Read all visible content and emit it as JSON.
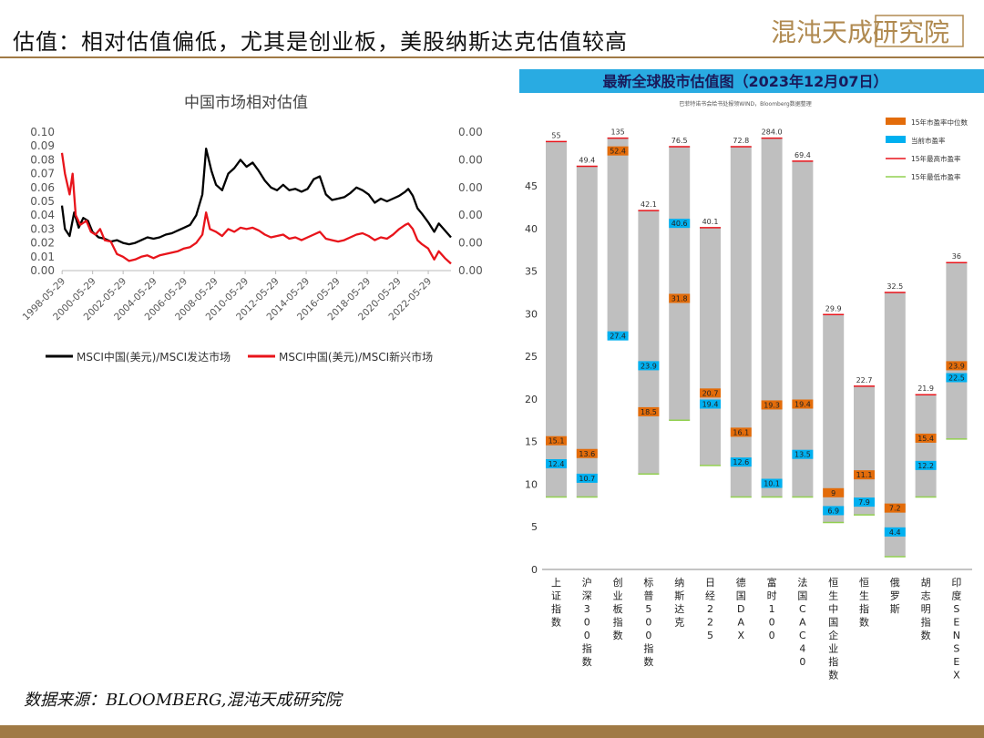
{
  "header": {
    "title": "估值：相对估值偏低，尤其是创业板，美股纳斯达克估值较高",
    "logo_text": "混沌天成研究院"
  },
  "footer": {
    "source": "数据来源：BLOOMBERG,混沌天成研究院"
  },
  "colors": {
    "accent": "#a07a45",
    "black_series": "#000000",
    "red_series": "#e8141b",
    "banner": "#29abe2",
    "median": "#e36c0a",
    "current": "#00b0f0",
    "high": "#e8141b",
    "low": "#92d050",
    "bar": "#bfbfbf"
  },
  "chart_data": [
    {
      "type": "line",
      "title": "中国市场相对估值",
      "x_ticks": [
        "1998-05-29",
        "2000-05-29",
        "2002-05-29",
        "2004-05-29",
        "2006-05-29",
        "2008-05-29",
        "2010-05-29",
        "2012-05-29",
        "2014-05-29",
        "2016-05-29",
        "2018-05-29",
        "2020-05-29",
        "2022-05-29"
      ],
      "y_ticks_left": [
        "0.00",
        "0.01",
        "0.02",
        "0.03",
        "0.04",
        "0.05",
        "0.06",
        "0.07",
        "0.08",
        "0.09",
        "0.10"
      ],
      "y_ticks_right": [
        "0.00",
        "0.00",
        "0.00",
        "0.00",
        "0.00",
        "0.00"
      ],
      "ylim": [
        0,
        0.1
      ],
      "xlim": [
        1998.4,
        2023.9
      ],
      "series": [
        {
          "name": "MSCI中国(美元)/MSCI发达市场",
          "points": [
            [
              1998.4,
              0.047
            ],
            [
              1998.6,
              0.03
            ],
            [
              1998.9,
              0.025
            ],
            [
              1999.2,
              0.042
            ],
            [
              1999.5,
              0.031
            ],
            [
              1999.8,
              0.038
            ],
            [
              2000.1,
              0.036
            ],
            [
              2000.4,
              0.028
            ],
            [
              2000.8,
              0.024
            ],
            [
              2001.2,
              0.023
            ],
            [
              2001.6,
              0.021
            ],
            [
              2002.0,
              0.022
            ],
            [
              2002.4,
              0.02
            ],
            [
              2002.8,
              0.019
            ],
            [
              2003.2,
              0.02
            ],
            [
              2003.6,
              0.022
            ],
            [
              2004.0,
              0.024
            ],
            [
              2004.4,
              0.023
            ],
            [
              2004.8,
              0.024
            ],
            [
              2005.2,
              0.026
            ],
            [
              2005.6,
              0.027
            ],
            [
              2006.0,
              0.029
            ],
            [
              2006.4,
              0.031
            ],
            [
              2006.8,
              0.033
            ],
            [
              2007.2,
              0.04
            ],
            [
              2007.6,
              0.055
            ],
            [
              2007.85,
              0.088
            ],
            [
              2008.2,
              0.072
            ],
            [
              2008.5,
              0.062
            ],
            [
              2008.9,
              0.058
            ],
            [
              2009.3,
              0.07
            ],
            [
              2009.7,
              0.074
            ],
            [
              2010.1,
              0.08
            ],
            [
              2010.5,
              0.075
            ],
            [
              2010.9,
              0.078
            ],
            [
              2011.3,
              0.072
            ],
            [
              2011.7,
              0.065
            ],
            [
              2012.1,
              0.06
            ],
            [
              2012.5,
              0.058
            ],
            [
              2012.9,
              0.062
            ],
            [
              2013.3,
              0.058
            ],
            [
              2013.7,
              0.059
            ],
            [
              2014.1,
              0.057
            ],
            [
              2014.5,
              0.059
            ],
            [
              2014.9,
              0.066
            ],
            [
              2015.3,
              0.068
            ],
            [
              2015.7,
              0.055
            ],
            [
              2016.1,
              0.051
            ],
            [
              2016.5,
              0.052
            ],
            [
              2016.9,
              0.053
            ],
            [
              2017.3,
              0.056
            ],
            [
              2017.7,
              0.06
            ],
            [
              2018.1,
              0.058
            ],
            [
              2018.5,
              0.055
            ],
            [
              2018.9,
              0.049
            ],
            [
              2019.3,
              0.052
            ],
            [
              2019.7,
              0.05
            ],
            [
              2020.1,
              0.052
            ],
            [
              2020.5,
              0.054
            ],
            [
              2020.9,
              0.057
            ],
            [
              2021.1,
              0.059
            ],
            [
              2021.4,
              0.054
            ],
            [
              2021.7,
              0.045
            ],
            [
              2022.0,
              0.041
            ],
            [
              2022.4,
              0.035
            ],
            [
              2022.8,
              0.028
            ],
            [
              2023.1,
              0.034
            ],
            [
              2023.5,
              0.029
            ],
            [
              2023.9,
              0.024
            ]
          ]
        },
        {
          "name": "MSCI中国(美元)/MSCI新兴市场",
          "points": [
            [
              1998.4,
              0.085
            ],
            [
              1998.6,
              0.07
            ],
            [
              1998.9,
              0.055
            ],
            [
              1999.1,
              0.07
            ],
            [
              1999.3,
              0.04
            ],
            [
              1999.6,
              0.033
            ],
            [
              2000.0,
              0.036
            ],
            [
              2000.3,
              0.028
            ],
            [
              2000.6,
              0.026
            ],
            [
              2000.9,
              0.03
            ],
            [
              2001.2,
              0.022
            ],
            [
              2001.6,
              0.021
            ],
            [
              2002.0,
              0.012
            ],
            [
              2002.4,
              0.01
            ],
            [
              2002.8,
              0.007
            ],
            [
              2003.2,
              0.008
            ],
            [
              2003.6,
              0.01
            ],
            [
              2004.0,
              0.011
            ],
            [
              2004.4,
              0.009
            ],
            [
              2004.8,
              0.011
            ],
            [
              2005.2,
              0.012
            ],
            [
              2005.6,
              0.013
            ],
            [
              2006.0,
              0.014
            ],
            [
              2006.4,
              0.016
            ],
            [
              2006.8,
              0.017
            ],
            [
              2007.2,
              0.02
            ],
            [
              2007.6,
              0.026
            ],
            [
              2007.85,
              0.042
            ],
            [
              2008.1,
              0.03
            ],
            [
              2008.5,
              0.028
            ],
            [
              2008.9,
              0.025
            ],
            [
              2009.3,
              0.03
            ],
            [
              2009.7,
              0.028
            ],
            [
              2010.1,
              0.031
            ],
            [
              2010.5,
              0.03
            ],
            [
              2010.9,
              0.031
            ],
            [
              2011.3,
              0.029
            ],
            [
              2011.7,
              0.026
            ],
            [
              2012.1,
              0.024
            ],
            [
              2012.5,
              0.025
            ],
            [
              2012.9,
              0.026
            ],
            [
              2013.3,
              0.023
            ],
            [
              2013.7,
              0.024
            ],
            [
              2014.1,
              0.022
            ],
            [
              2014.5,
              0.024
            ],
            [
              2014.9,
              0.026
            ],
            [
              2015.3,
              0.028
            ],
            [
              2015.7,
              0.023
            ],
            [
              2016.1,
              0.022
            ],
            [
              2016.5,
              0.021
            ],
            [
              2016.9,
              0.022
            ],
            [
              2017.3,
              0.024
            ],
            [
              2017.7,
              0.026
            ],
            [
              2018.1,
              0.027
            ],
            [
              2018.5,
              0.025
            ],
            [
              2018.9,
              0.022
            ],
            [
              2019.3,
              0.024
            ],
            [
              2019.7,
              0.023
            ],
            [
              2020.1,
              0.026
            ],
            [
              2020.5,
              0.03
            ],
            [
              2020.9,
              0.033
            ],
            [
              2021.1,
              0.034
            ],
            [
              2021.4,
              0.03
            ],
            [
              2021.7,
              0.022
            ],
            [
              2022.0,
              0.019
            ],
            [
              2022.4,
              0.016
            ],
            [
              2022.8,
              0.008
            ],
            [
              2023.1,
              0.014
            ],
            [
              2023.5,
              0.009
            ],
            [
              2023.9,
              0.005
            ]
          ]
        }
      ]
    },
    {
      "type": "bar",
      "title": "最新全球股市估值图（2023年12月07日）",
      "subtitle": "巴菲特诺书会给书处报领WIND，Bloomberg数据整理",
      "y_ticks": [
        "0",
        "5",
        "10",
        "15",
        "20",
        "25",
        "30",
        "35",
        "40",
        "45"
      ],
      "legend": [
        "15年市盈率中位数",
        "当前市盈率",
        "15年最高市盈率",
        "15年最低市盈率"
      ],
      "categories": [
        "上证指数",
        "沪深300指数",
        "创业板指数",
        "标普500指数",
        "纳斯达克",
        "日经225",
        "德国DAX",
        "富时100",
        "法国CAC40",
        "恒生中国企业指数",
        "恒生指数",
        "俄罗斯",
        "胡志明指数",
        "印度SENSEX"
      ],
      "high_labels": [
        "55",
        "49.4",
        "135",
        "42.1",
        "76.5",
        "40.1",
        "72.8",
        "284.0",
        "69.4",
        "29.9",
        "22.7",
        "32.5",
        "21.9",
        "36"
      ],
      "high_plot": [
        50.2,
        47.3,
        50.6,
        42.1,
        49.6,
        40.1,
        49.6,
        50.6,
        47.9,
        29.9,
        21.5,
        32.5,
        20.5,
        36
      ],
      "low": [
        8.5,
        8.5,
        27.4,
        11.2,
        17.5,
        12.2,
        8.5,
        8.5,
        8.5,
        5.5,
        6.4,
        1.5,
        8.5,
        15.3
      ],
      "median": [
        15.1,
        13.6,
        52.4,
        18.5,
        31.8,
        20.7,
        16.1,
        19.3,
        19.4,
        9.0,
        11.1,
        7.2,
        15.4,
        23.9
      ],
      "median_plot": [
        15.1,
        13.6,
        49.1,
        18.5,
        31.8,
        20.7,
        16.1,
        19.3,
        19.4,
        9.0,
        11.1,
        7.2,
        15.4,
        23.9
      ],
      "current": [
        12.4,
        10.7,
        27.4,
        23.9,
        40.6,
        19.4,
        12.6,
        10.1,
        13.5,
        6.9,
        7.9,
        4.4,
        12.2,
        22.5
      ]
    }
  ]
}
